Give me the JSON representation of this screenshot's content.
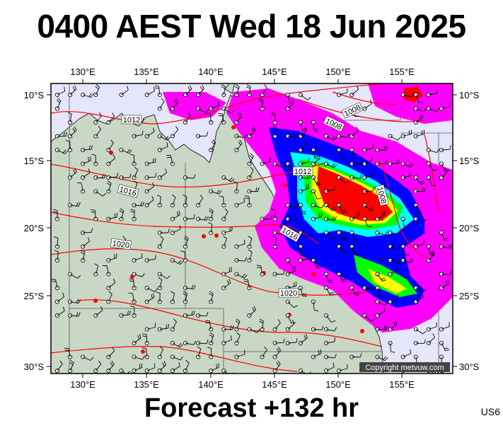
{
  "header": {
    "title": "0400 AEST Wed 18 Jun 2025"
  },
  "footer": {
    "forecast_label": "Forecast +132 hr",
    "model_code": "US6"
  },
  "map": {
    "lon_ticks": [
      "130°E",
      "135°E",
      "140°E",
      "145°E",
      "150°E",
      "155°E"
    ],
    "lat_ticks": [
      "10°S",
      "15°S",
      "20°S",
      "25°S",
      "30°S"
    ],
    "isobar_labels": [
      "1008",
      "1008",
      "1008",
      "1012",
      "1012",
      "1016",
      "1016",
      "1020",
      "1020"
    ],
    "copyright": "Copyright metvuw.com"
  },
  "colors": {
    "land": "#c9d8c5",
    "sea": "#e6e6fa",
    "isobar": "#ff0000",
    "rain_light": "#ff00ff",
    "rain_moderate": "#0000ff",
    "rain_heavy": "#00ff00",
    "rain_very_heavy": "#ffff00",
    "rain_extreme": "#ff0000"
  }
}
